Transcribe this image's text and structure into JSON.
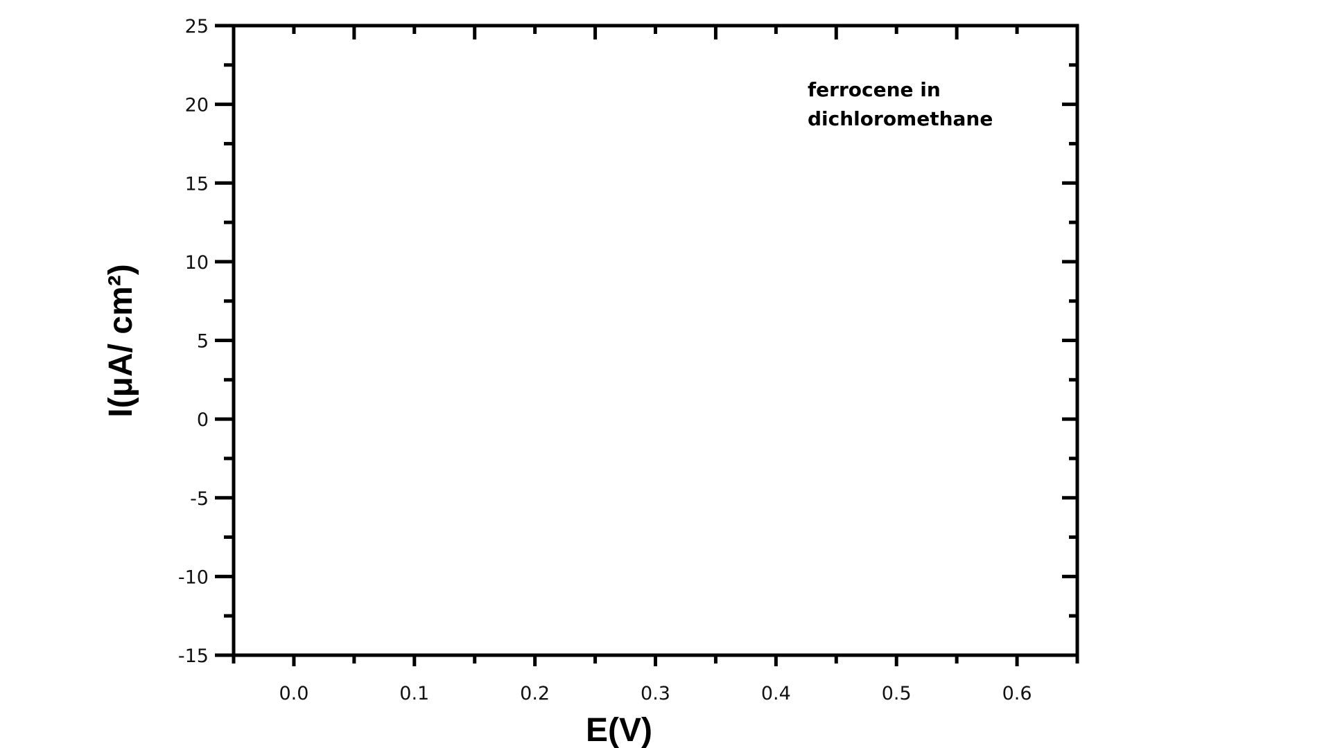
{
  "chart_data": {
    "type": "line",
    "title": "",
    "xlabel": "E(V)",
    "ylabel": "I(μA/ cm²)",
    "xlim": [
      -0.05,
      0.65
    ],
    "ylim": [
      -15,
      25
    ],
    "x_ticks": [
      0.0,
      0.1,
      0.2,
      0.3,
      0.4,
      0.5,
      0.6
    ],
    "x_tick_labels": [
      "0.0",
      "0.1",
      "0.2",
      "0.3",
      "0.4",
      "0.5",
      "0.6"
    ],
    "y_ticks": [
      -15,
      -10,
      -5,
      0,
      5,
      10,
      15,
      20,
      25
    ],
    "y_tick_labels": [
      "-15",
      "-10",
      "-5",
      "0",
      "5",
      "10",
      "15",
      "20",
      "25"
    ],
    "grid": false,
    "series": [],
    "annotations": [
      "ferrocene in",
      "dichloromethane"
    ],
    "colors": {
      "axis": "#000000",
      "text": "#111111",
      "background": "#ffffff"
    }
  }
}
